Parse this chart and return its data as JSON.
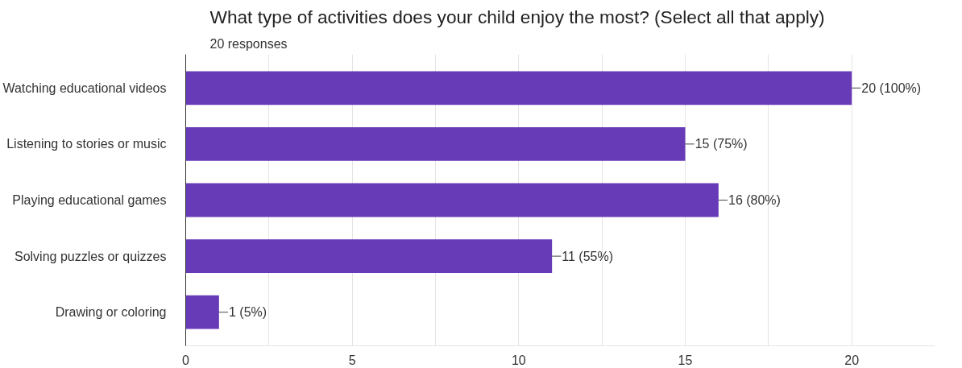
{
  "chart_data": {
    "type": "bar",
    "orientation": "horizontal",
    "title": "What type of activities does your child enjoy the most? (Select all that apply)",
    "subtitle": "20 responses",
    "categories": [
      "Watching educational videos",
      "Listening to stories or music",
      "Playing educational games",
      "Solving puzzles or quizzes",
      "Drawing or coloring"
    ],
    "values": [
      20,
      15,
      16,
      11,
      1
    ],
    "value_labels": [
      "20 (100%)",
      "15 (75%)",
      "16 (80%)",
      "11 (55%)",
      "1 (5%)"
    ],
    "color": "#673ab7",
    "xlim": [
      0,
      22.5
    ],
    "xticks": [
      0,
      {
        "value": 2.5,
        "label": null
      },
      5,
      {
        "value": 7.5,
        "label": null
      },
      10,
      {
        "value": 12.5,
        "label": null
      },
      15,
      {
        "value": 17.5,
        "label": null
      },
      20
    ],
    "grid": "x"
  }
}
